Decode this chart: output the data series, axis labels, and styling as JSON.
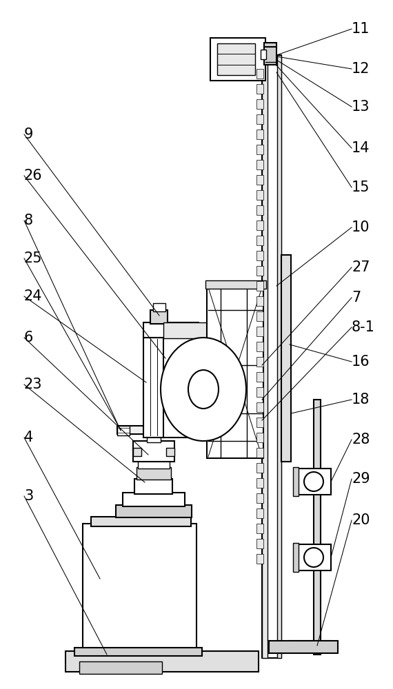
{
  "background_color": "#ffffff",
  "line_color": "#000000",
  "fig_width": 5.7,
  "fig_height": 10.0,
  "dpi": 100,
  "label_fontsize": 15
}
